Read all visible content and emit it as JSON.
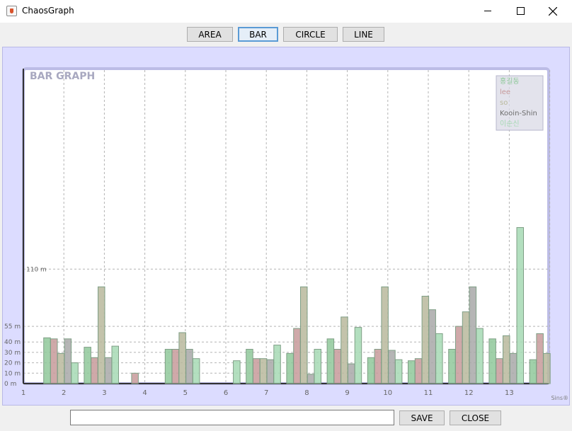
{
  "window": {
    "title": "ChaosGraph"
  },
  "toolbar": {
    "buttons": [
      "AREA",
      "BAR",
      "CIRCLE",
      "LINE"
    ],
    "active": "BAR"
  },
  "bottom": {
    "input_value": "",
    "save_label": "SAVE",
    "close_label": "CLOSE"
  },
  "footer_mark": "Sins®",
  "chart_data": {
    "type": "bar",
    "title": "BAR GRAPH",
    "x": [
      1,
      2,
      3,
      4,
      5,
      6,
      7,
      8,
      9,
      10,
      11,
      12,
      13
    ],
    "y_ticks": [
      {
        "value": 0,
        "label": "0 m"
      },
      {
        "value": 10,
        "label": "10 m"
      },
      {
        "value": 20,
        "label": "20 m"
      },
      {
        "value": 30,
        "label": "30 m"
      },
      {
        "value": 40,
        "label": "40 m"
      },
      {
        "value": 55,
        "label": "55 m"
      },
      {
        "value": 110,
        "label": "110 m"
      }
    ],
    "ylim": [
      0,
      300
    ],
    "grid": true,
    "legend_position": "top-right",
    "series": [
      {
        "name": "홍길동",
        "color": "#8fc89a",
        "values": [
          44,
          35,
          0,
          33,
          0,
          33,
          29,
          43,
          25,
          22,
          33,
          43,
          23
        ]
      },
      {
        "name": "lee",
        "color": "#c79a9a",
        "values": [
          43,
          25,
          10,
          33,
          0,
          24,
          53,
          33,
          33,
          24,
          55,
          24,
          48
        ]
      },
      {
        "name": "so",
        "color": "#b9b99c",
        "values": [
          29,
          93,
          0,
          49,
          0,
          24,
          93,
          64,
          93,
          84,
          69,
          46,
          29
        ]
      },
      {
        "name": "Kooin-Shin",
        "color": "#a8a8a8",
        "values": [
          43,
          25,
          0,
          33,
          0,
          23,
          9,
          19,
          32,
          71,
          93,
          29,
          0
        ]
      },
      {
        "name": "이순신",
        "color": "#a6d9b4",
        "values": [
          20,
          36,
          0,
          24,
          22,
          37,
          33,
          54,
          23,
          48,
          53,
          150,
          0
        ]
      }
    ]
  }
}
